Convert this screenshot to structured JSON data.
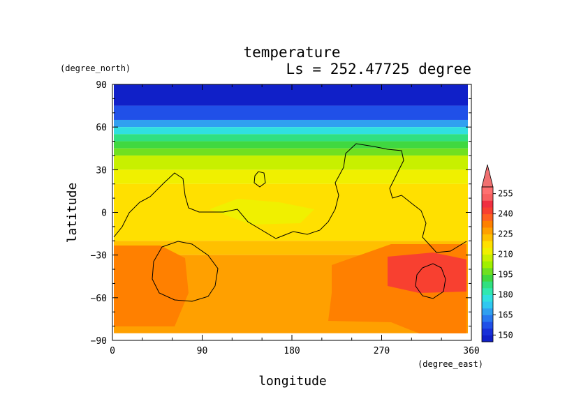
{
  "chart_data": {
    "type": "heatmap",
    "title": "temperature",
    "subtitle": "Ls = 252.47725 degree",
    "xlabel": "longitude",
    "ylabel": "latitude",
    "x_unit": "(degree_east)",
    "y_unit": "(degree_north)",
    "xlim": [
      0,
      360
    ],
    "ylim": [
      -90,
      90
    ],
    "x_ticks": [
      "0",
      "90",
      "180",
      "270",
      "360"
    ],
    "y_ticks": [
      "90",
      "60",
      "30",
      "0",
      "−30",
      "−60",
      "−90"
    ],
    "x_tick_values": [
      0,
      90,
      180,
      270,
      360
    ],
    "y_tick_values": [
      90,
      60,
      30,
      0,
      -30,
      -60,
      -90
    ],
    "colorbar": {
      "labels": [
        "255",
        "240",
        "225",
        "210",
        "195",
        "180",
        "165",
        "150"
      ],
      "label_values": [
        255,
        240,
        225,
        210,
        195,
        180,
        165,
        150
      ],
      "min": 145,
      "max": 260,
      "step": 5,
      "overflow_arrow": "top",
      "colors": [
        "#1020c8",
        "#1830d8",
        "#2050e8",
        "#2878f0",
        "#30a0f0",
        "#30c8f0",
        "#30e0e0",
        "#30e8b0",
        "#30e080",
        "#40d840",
        "#70e020",
        "#a0f000",
        "#c8f000",
        "#f0f000",
        "#ffe000",
        "#ffc000",
        "#ffa000",
        "#ff8000",
        "#ff6020",
        "#f84030",
        "#f03040",
        "#f86060",
        "#ff7070"
      ]
    },
    "fields": [
      {
        "lat": [
          75,
          90
        ],
        "value": 148
      },
      {
        "lat": [
          65,
          75
        ],
        "value": 155
      },
      {
        "lat": [
          60,
          65
        ],
        "value": 168
      },
      {
        "lat": [
          55,
          60
        ],
        "value": 178
      },
      {
        "lat": [
          50,
          55
        ],
        "value": 185
      },
      {
        "lat": [
          45,
          50
        ],
        "value": 192
      },
      {
        "lat": [
          40,
          45
        ],
        "value": 198
      },
      {
        "lat": [
          30,
          40
        ],
        "value": 205
      },
      {
        "lat": [
          20,
          30
        ],
        "value": 212
      },
      {
        "lat": [
          -20,
          20
        ],
        "value": 218
      },
      {
        "lat": [
          -30,
          -20
        ],
        "value": 224
      },
      {
        "lat": [
          -85,
          -30
        ],
        "value": 228
      }
    ],
    "contour_level": "black line"
  }
}
